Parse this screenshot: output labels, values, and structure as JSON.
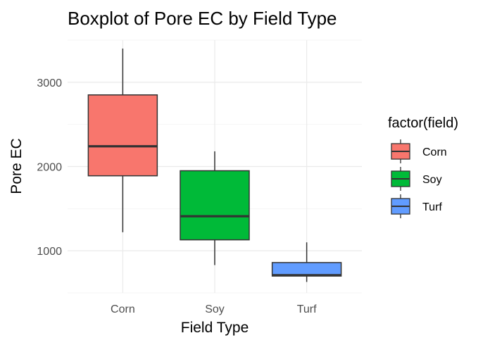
{
  "chart_data": {
    "type": "boxplot",
    "title": "Boxplot of Pore EC by Field Type",
    "xlabel": "Field Type",
    "ylabel": "Pore EC",
    "categories": [
      "Corn",
      "Soy",
      "Turf"
    ],
    "ylim": [
      500,
      3500
    ],
    "yticks": [
      1000,
      2000,
      3000
    ],
    "ytick_labels": [
      "1000",
      "2000",
      "3000"
    ],
    "grid": true,
    "legend": {
      "title": "factor(field)",
      "position": "right",
      "entries": [
        "Corn",
        "Soy",
        "Turf"
      ]
    },
    "series": [
      {
        "name": "Corn",
        "color": "#F8766D",
        "min": 1220,
        "q1": 1890,
        "median": 2240,
        "q3": 2850,
        "max": 3400
      },
      {
        "name": "Soy",
        "color": "#00BA38",
        "min": 830,
        "q1": 1130,
        "median": 1410,
        "q3": 1950,
        "max": 2180
      },
      {
        "name": "Turf",
        "color": "#619CFF",
        "min": 630,
        "q1": 700,
        "median": 710,
        "q3": 860,
        "max": 1100
      }
    ]
  }
}
